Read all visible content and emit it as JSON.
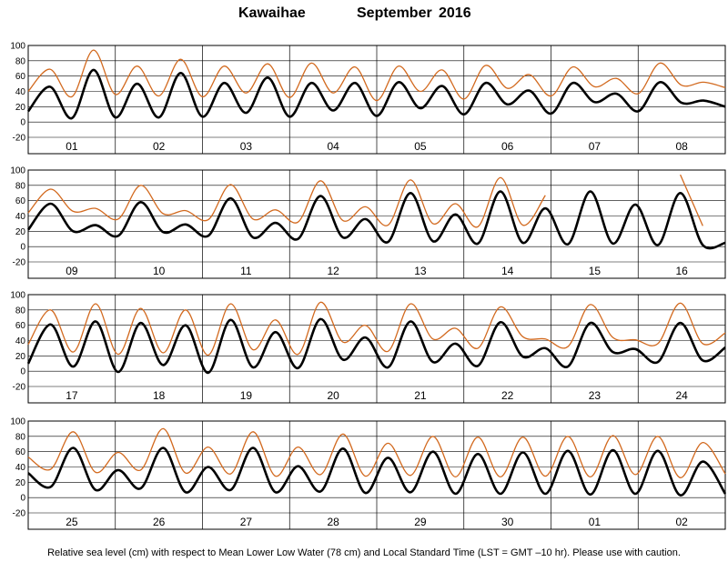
{
  "title": {
    "station": "Kawaihae",
    "month": "September",
    "year": "2016"
  },
  "footer": "Relative sea level (cm) with respect to Mean Lower Low Water (78 cm) and Local Standard Time (LST = GMT –10 hr). Please use with caution.",
  "colors": {
    "predicted": "#000000",
    "observed": "#d2691e",
    "grid": "#000000"
  },
  "chart_data": {
    "type": "line",
    "ylim": [
      -20,
      100
    ],
    "yticks": [
      -20,
      0,
      20,
      40,
      60,
      80,
      100
    ],
    "grid": true,
    "panels": [
      {
        "days": [
          "01",
          "02",
          "03",
          "04",
          "05",
          "06",
          "07",
          "08"
        ],
        "predicted": [
          14,
          46,
          5,
          68,
          6,
          50,
          6,
          64,
          7,
          51,
          12,
          58,
          7,
          51,
          15,
          51,
          8,
          52,
          18,
          47,
          10,
          51,
          23,
          41,
          11,
          51,
          26,
          37,
          14,
          52,
          25,
          28,
          20
        ],
        "observed": [
          40,
          69,
          33,
          94,
          36,
          73,
          34,
          82,
          33,
          73,
          38,
          76,
          32,
          77,
          38,
          72,
          28,
          73,
          40,
          68,
          30,
          74,
          44,
          62,
          34,
          72,
          46,
          57,
          37,
          77,
          48,
          52,
          45
        ]
      },
      {
        "days": [
          "09",
          "10",
          "11",
          "12",
          "13",
          "14",
          "15",
          "16"
        ],
        "predicted": [
          22,
          56,
          20,
          28,
          14,
          58,
          19,
          29,
          14,
          63,
          12,
          31,
          10,
          66,
          12,
          36,
          6,
          70,
          7,
          42,
          4,
          72,
          5,
          50,
          3,
          72,
          4,
          55,
          2,
          70,
          2,
          5
        ],
        "observed": [
          44,
          75,
          46,
          50,
          36,
          80,
          43,
          47,
          35,
          81,
          36,
          48,
          32,
          86,
          34,
          52,
          28,
          87,
          30,
          56,
          26,
          90,
          28,
          67,
          null,
          null,
          null,
          null,
          null,
          94,
          27,
          null
        ]
      },
      {
        "days": [
          "17",
          "18",
          "19",
          "20",
          "21",
          "22",
          "23",
          "24"
        ],
        "predicted": [
          10,
          61,
          6,
          65,
          -1,
          63,
          8,
          60,
          -2,
          67,
          5,
          51,
          4,
          68,
          15,
          44,
          5,
          65,
          12,
          36,
          7,
          64,
          19,
          30,
          6,
          63,
          25,
          29,
          12,
          63,
          14,
          31
        ],
        "observed": [
          35,
          80,
          25,
          88,
          22,
          82,
          24,
          80,
          21,
          88,
          28,
          67,
          22,
          90,
          38,
          60,
          26,
          88,
          42,
          56,
          30,
          84,
          45,
          42,
          32,
          87,
          44,
          41,
          36,
          89,
          36,
          50
        ]
      },
      {
        "days": [
          "25",
          "26",
          "27",
          "28",
          "29",
          "30",
          "01",
          "02"
        ],
        "predicted": [
          32,
          14,
          65,
          10,
          36,
          12,
          65,
          7,
          40,
          10,
          65,
          7,
          41,
          8,
          64,
          6,
          52,
          7,
          60,
          5,
          57,
          5,
          59,
          5,
          61,
          4,
          62,
          5,
          61,
          3,
          47,
          5
        ],
        "observed": [
          53,
          37,
          86,
          33,
          59,
          36,
          90,
          32,
          66,
          31,
          86,
          28,
          66,
          30,
          83,
          28,
          71,
          29,
          80,
          27,
          79,
          27,
          79,
          28,
          80,
          27,
          81,
          30,
          80,
          26,
          72,
          31
        ]
      }
    ]
  }
}
